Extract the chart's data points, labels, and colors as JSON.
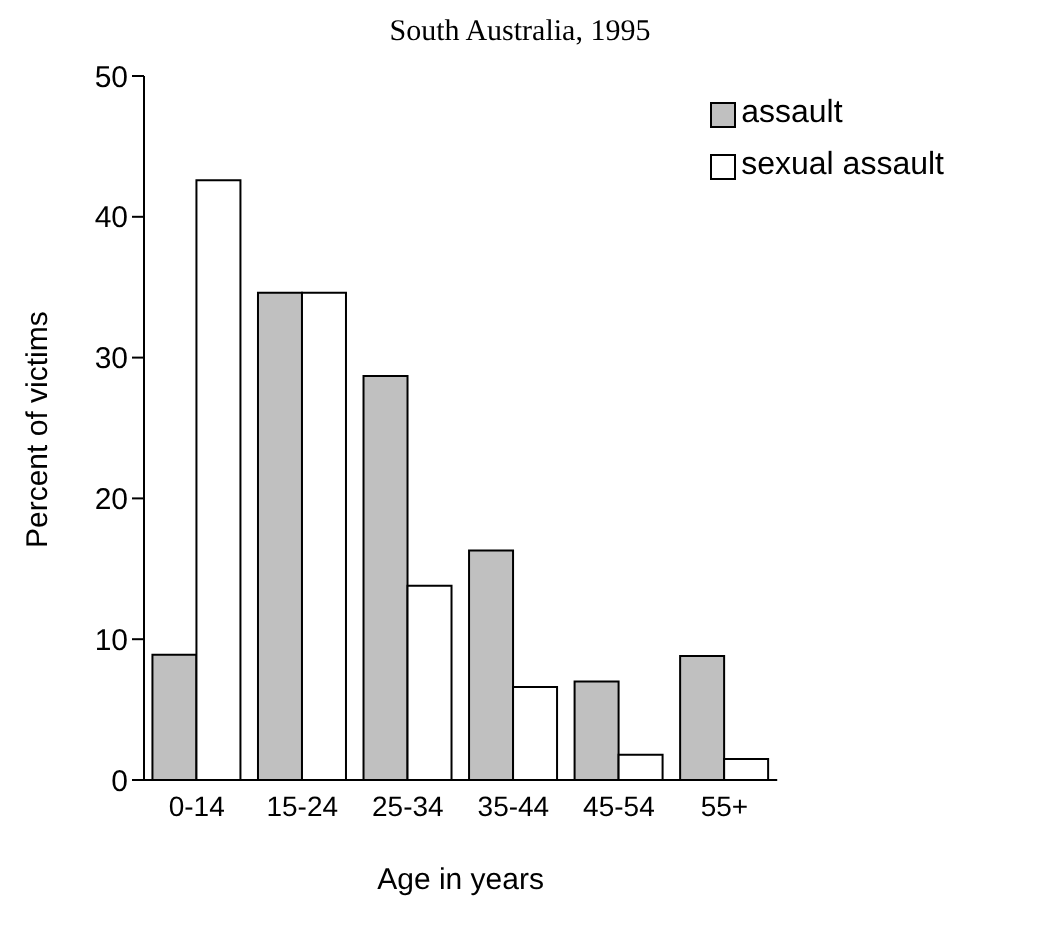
{
  "chart_data": {
    "type": "bar",
    "title": "South Australia, 1995",
    "xlabel": "Age in years",
    "ylabel": "Percent of victims",
    "categories": [
      "0-14",
      "15-24",
      "25-34",
      "35-44",
      "45-54",
      "55+"
    ],
    "series": [
      {
        "name": "assault",
        "color": "#c0c0c0",
        "values": [
          8.9,
          34.6,
          28.7,
          16.3,
          7.0,
          8.8
        ]
      },
      {
        "name": "sexual assault",
        "color": "#ffffff",
        "values": [
          42.6,
          34.6,
          13.8,
          6.6,
          1.8,
          1.5
        ]
      }
    ],
    "ylim": [
      0,
      50
    ],
    "yticks": [
      0,
      10,
      20,
      30,
      40,
      50
    ],
    "grid": false,
    "legend": "top right"
  }
}
